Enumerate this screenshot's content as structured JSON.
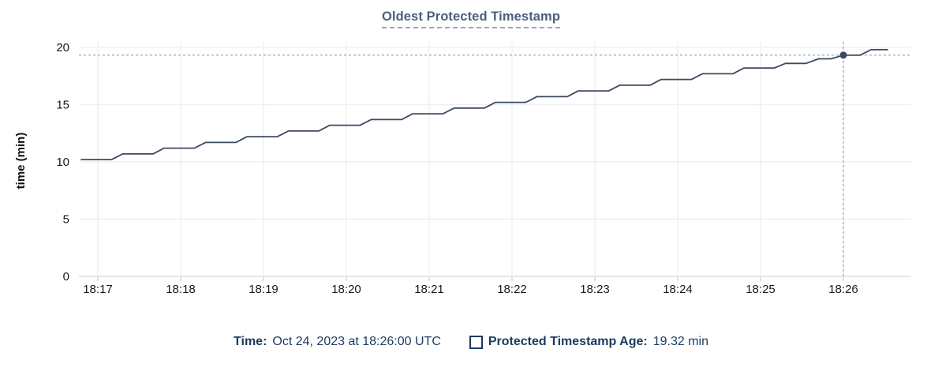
{
  "title": "Oldest Protected Timestamp",
  "footer": {
    "time_label": "Time:",
    "time_value": "Oct 24, 2023 at 18:26:00 UTC",
    "series_label": "Protected Timestamp Age:",
    "series_value": "19.32 min"
  },
  "chart_data": {
    "type": "line",
    "title": "Oldest Protected Timestamp",
    "xlabel": "",
    "ylabel": "time (min)",
    "ylim": [
      0,
      20
    ],
    "yticks": [
      0,
      5,
      10,
      15,
      20
    ],
    "xticks": [
      "18:17",
      "18:18",
      "18:19",
      "18:20",
      "18:21",
      "18:22",
      "18:23",
      "18:24",
      "18:25",
      "18:26"
    ],
    "grid": true,
    "legend_position": "bottom",
    "series": [
      {
        "name": "Protected Timestamp Age",
        "unit": "min",
        "points": [
          [
            "18:16:48",
            10.2
          ],
          [
            "18:17:10",
            10.2
          ],
          [
            "18:17:18",
            10.7
          ],
          [
            "18:17:40",
            10.7
          ],
          [
            "18:17:48",
            11.2
          ],
          [
            "18:18:10",
            11.2
          ],
          [
            "18:18:18",
            11.7
          ],
          [
            "18:18:40",
            11.7
          ],
          [
            "18:18:48",
            12.2
          ],
          [
            "18:19:10",
            12.2
          ],
          [
            "18:19:18",
            12.7
          ],
          [
            "18:19:40",
            12.7
          ],
          [
            "18:19:48",
            13.2
          ],
          [
            "18:20:10",
            13.2
          ],
          [
            "18:20:18",
            13.7
          ],
          [
            "18:20:40",
            13.7
          ],
          [
            "18:20:48",
            14.2
          ],
          [
            "18:21:10",
            14.2
          ],
          [
            "18:21:18",
            14.7
          ],
          [
            "18:21:40",
            14.7
          ],
          [
            "18:21:48",
            15.2
          ],
          [
            "18:22:10",
            15.2
          ],
          [
            "18:22:18",
            15.7
          ],
          [
            "18:22:40",
            15.7
          ],
          [
            "18:22:48",
            16.2
          ],
          [
            "18:23:10",
            16.2
          ],
          [
            "18:23:18",
            16.7
          ],
          [
            "18:23:40",
            16.7
          ],
          [
            "18:23:48",
            17.2
          ],
          [
            "18:24:10",
            17.2
          ],
          [
            "18:24:18",
            17.7
          ],
          [
            "18:24:40",
            17.7
          ],
          [
            "18:24:48",
            18.2
          ],
          [
            "18:25:10",
            18.2
          ],
          [
            "18:25:18",
            18.6
          ],
          [
            "18:25:33",
            18.6
          ],
          [
            "18:25:42",
            19.0
          ],
          [
            "18:25:51",
            19.0
          ],
          [
            "18:26:00",
            19.32
          ],
          [
            "18:26:12",
            19.32
          ],
          [
            "18:26:20",
            19.8
          ],
          [
            "18:26:32",
            19.8
          ]
        ]
      }
    ],
    "crosshair": {
      "time": "18:26:00",
      "value": 19.32
    },
    "colors": {
      "line": "#3b4a60",
      "marker": "#3b4a60",
      "grid": "#efefef",
      "axis_line": "#e7e7e7",
      "tick": "#d2d2d2",
      "axis_text": "#17191c",
      "crosshair": "#a3b3c1",
      "title": "#4d5f7c",
      "footer_text": "#1b3a5e"
    }
  }
}
